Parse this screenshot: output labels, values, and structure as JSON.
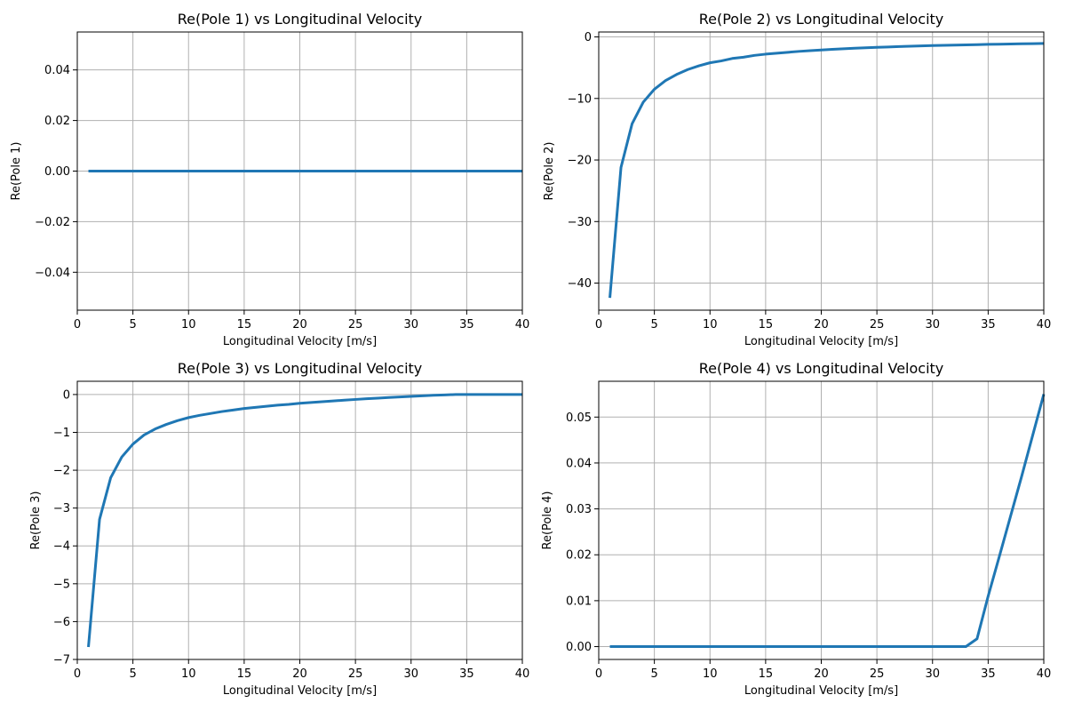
{
  "chart_data": [
    {
      "type": "line",
      "title": "Re(Pole 1) vs Longitudinal Velocity",
      "xlabel": "Longitudinal Velocity [m/s]",
      "ylabel": "Re(Pole 1)",
      "xlim": [
        0,
        40
      ],
      "ylim": [
        -0.055,
        0.055
      ],
      "xticks": [
        0,
        5,
        10,
        15,
        20,
        25,
        30,
        35,
        40
      ],
      "xtick_labels": [
        "0",
        "5",
        "10",
        "15",
        "20",
        "25",
        "30",
        "35",
        "40"
      ],
      "yticks": [
        -0.04,
        -0.02,
        0.0,
        0.02,
        0.04
      ],
      "ytick_labels": [
        "−0.04",
        "−0.02",
        "0.00",
        "0.02",
        "0.04"
      ],
      "grid": true,
      "color": "#1f77b4",
      "series": [
        {
          "x": [
            1,
            2,
            3,
            4,
            5,
            6,
            7,
            8,
            9,
            10,
            11,
            12,
            13,
            14,
            15,
            16,
            17,
            18,
            19,
            20,
            21,
            22,
            23,
            24,
            25,
            26,
            27,
            28,
            29,
            30,
            31,
            32,
            33,
            34,
            35,
            36,
            37,
            38,
            39,
            40
          ],
          "y": [
            0,
            0,
            0,
            0,
            0,
            0,
            0,
            0,
            0,
            0,
            0,
            0,
            0,
            0,
            0,
            0,
            0,
            0,
            0,
            0,
            0,
            0,
            0,
            0,
            0,
            0,
            0,
            0,
            0,
            0,
            0,
            0,
            0,
            0,
            0,
            0,
            0,
            0,
            0,
            0
          ]
        }
      ]
    },
    {
      "type": "line",
      "title": "Re(Pole 2) vs Longitudinal Velocity",
      "xlabel": "Longitudinal Velocity [m/s]",
      "ylabel": "Re(Pole 2)",
      "xlim": [
        0,
        40
      ],
      "ylim": [
        -44.4,
        0.8
      ],
      "xticks": [
        0,
        5,
        10,
        15,
        20,
        25,
        30,
        35,
        40
      ],
      "xtick_labels": [
        "0",
        "5",
        "10",
        "15",
        "20",
        "25",
        "30",
        "35",
        "40"
      ],
      "yticks": [
        -40,
        -30,
        -20,
        -10,
        0
      ],
      "ytick_labels": [
        "−40",
        "−30",
        "−20",
        "−10",
        "0"
      ],
      "grid": true,
      "color": "#1f77b4",
      "series": [
        {
          "x": [
            1,
            2,
            3,
            4,
            5,
            6,
            7,
            8,
            9,
            10,
            11,
            12,
            13,
            14,
            15,
            16,
            17,
            18,
            19,
            20,
            21,
            22,
            23,
            24,
            25,
            26,
            27,
            28,
            29,
            30,
            31,
            32,
            33,
            34,
            35,
            36,
            37,
            38,
            39,
            40
          ],
          "y": [
            -42.4,
            -21.2,
            -14.1,
            -10.6,
            -8.5,
            -7.1,
            -6.1,
            -5.3,
            -4.7,
            -4.2,
            -3.9,
            -3.5,
            -3.3,
            -3.0,
            -2.8,
            -2.65,
            -2.5,
            -2.35,
            -2.23,
            -2.12,
            -2.02,
            -1.93,
            -1.84,
            -1.77,
            -1.7,
            -1.63,
            -1.57,
            -1.51,
            -1.46,
            -1.41,
            -1.37,
            -1.33,
            -1.29,
            -1.25,
            -1.21,
            -1.18,
            -1.15,
            -1.12,
            -1.09,
            -1.06
          ]
        }
      ]
    },
    {
      "type": "line",
      "title": "Re(Pole 3) vs Longitudinal Velocity",
      "xlabel": "Longitudinal Velocity [m/s]",
      "ylabel": "Re(Pole 3)",
      "xlim": [
        0,
        40
      ],
      "ylim": [
        -7.0,
        0.35
      ],
      "xticks": [
        0,
        5,
        10,
        15,
        20,
        25,
        30,
        35,
        40
      ],
      "xtick_labels": [
        "0",
        "5",
        "10",
        "15",
        "20",
        "25",
        "30",
        "35",
        "40"
      ],
      "yticks": [
        -7,
        -6,
        -5,
        -4,
        -3,
        -2,
        -1,
        0
      ],
      "ytick_labels": [
        "−7",
        "−6",
        "−5",
        "−4",
        "−3",
        "−2",
        "−1",
        "0"
      ],
      "grid": true,
      "color": "#1f77b4",
      "series": [
        {
          "x": [
            1,
            2,
            3,
            4,
            5,
            6,
            7,
            8,
            9,
            10,
            11,
            12,
            13,
            14,
            15,
            16,
            17,
            18,
            19,
            20,
            21,
            22,
            23,
            24,
            25,
            26,
            27,
            28,
            29,
            30,
            31,
            32,
            33,
            34,
            35,
            36,
            37,
            38,
            39,
            40
          ],
          "y": [
            -6.67,
            -3.3,
            -2.2,
            -1.65,
            -1.31,
            -1.07,
            -0.91,
            -0.79,
            -0.69,
            -0.61,
            -0.55,
            -0.5,
            -0.45,
            -0.41,
            -0.37,
            -0.34,
            -0.31,
            -0.28,
            -0.26,
            -0.23,
            -0.21,
            -0.19,
            -0.17,
            -0.15,
            -0.13,
            -0.11,
            -0.095,
            -0.08,
            -0.065,
            -0.05,
            -0.035,
            -0.02,
            -0.01,
            0,
            0,
            0,
            0,
            0,
            0,
            0
          ]
        }
      ]
    },
    {
      "type": "line",
      "title": "Re(Pole 4) vs Longitudinal Velocity",
      "xlabel": "Longitudinal Velocity [m/s]",
      "ylabel": "Re(Pole 4)",
      "xlim": [
        0,
        40
      ],
      "ylim": [
        -0.0028,
        0.0578
      ],
      "xticks": [
        0,
        5,
        10,
        15,
        20,
        25,
        30,
        35,
        40
      ],
      "xtick_labels": [
        "0",
        "5",
        "10",
        "15",
        "20",
        "25",
        "30",
        "35",
        "40"
      ],
      "yticks": [
        0.0,
        0.01,
        0.02,
        0.03,
        0.04,
        0.05
      ],
      "ytick_labels": [
        "0.00",
        "0.01",
        "0.02",
        "0.03",
        "0.04",
        "0.05"
      ],
      "grid": true,
      "color": "#1f77b4",
      "series": [
        {
          "x": [
            1,
            2,
            3,
            4,
            5,
            6,
            7,
            8,
            9,
            10,
            11,
            12,
            13,
            14,
            15,
            16,
            17,
            18,
            19,
            20,
            21,
            22,
            23,
            24,
            25,
            26,
            27,
            28,
            29,
            30,
            31,
            32,
            33,
            34,
            35,
            36,
            37,
            38,
            39,
            40
          ],
          "y": [
            0,
            0,
            0,
            0,
            0,
            0,
            0,
            0,
            0,
            0,
            0,
            0,
            0,
            0,
            0,
            0,
            0,
            0,
            0,
            0,
            0,
            0,
            0,
            0,
            0,
            0,
            0,
            0,
            0,
            0,
            0,
            0,
            0,
            0.0017,
            0.011,
            0.0196,
            0.0283,
            0.037,
            0.046,
            0.055
          ]
        }
      ]
    }
  ]
}
